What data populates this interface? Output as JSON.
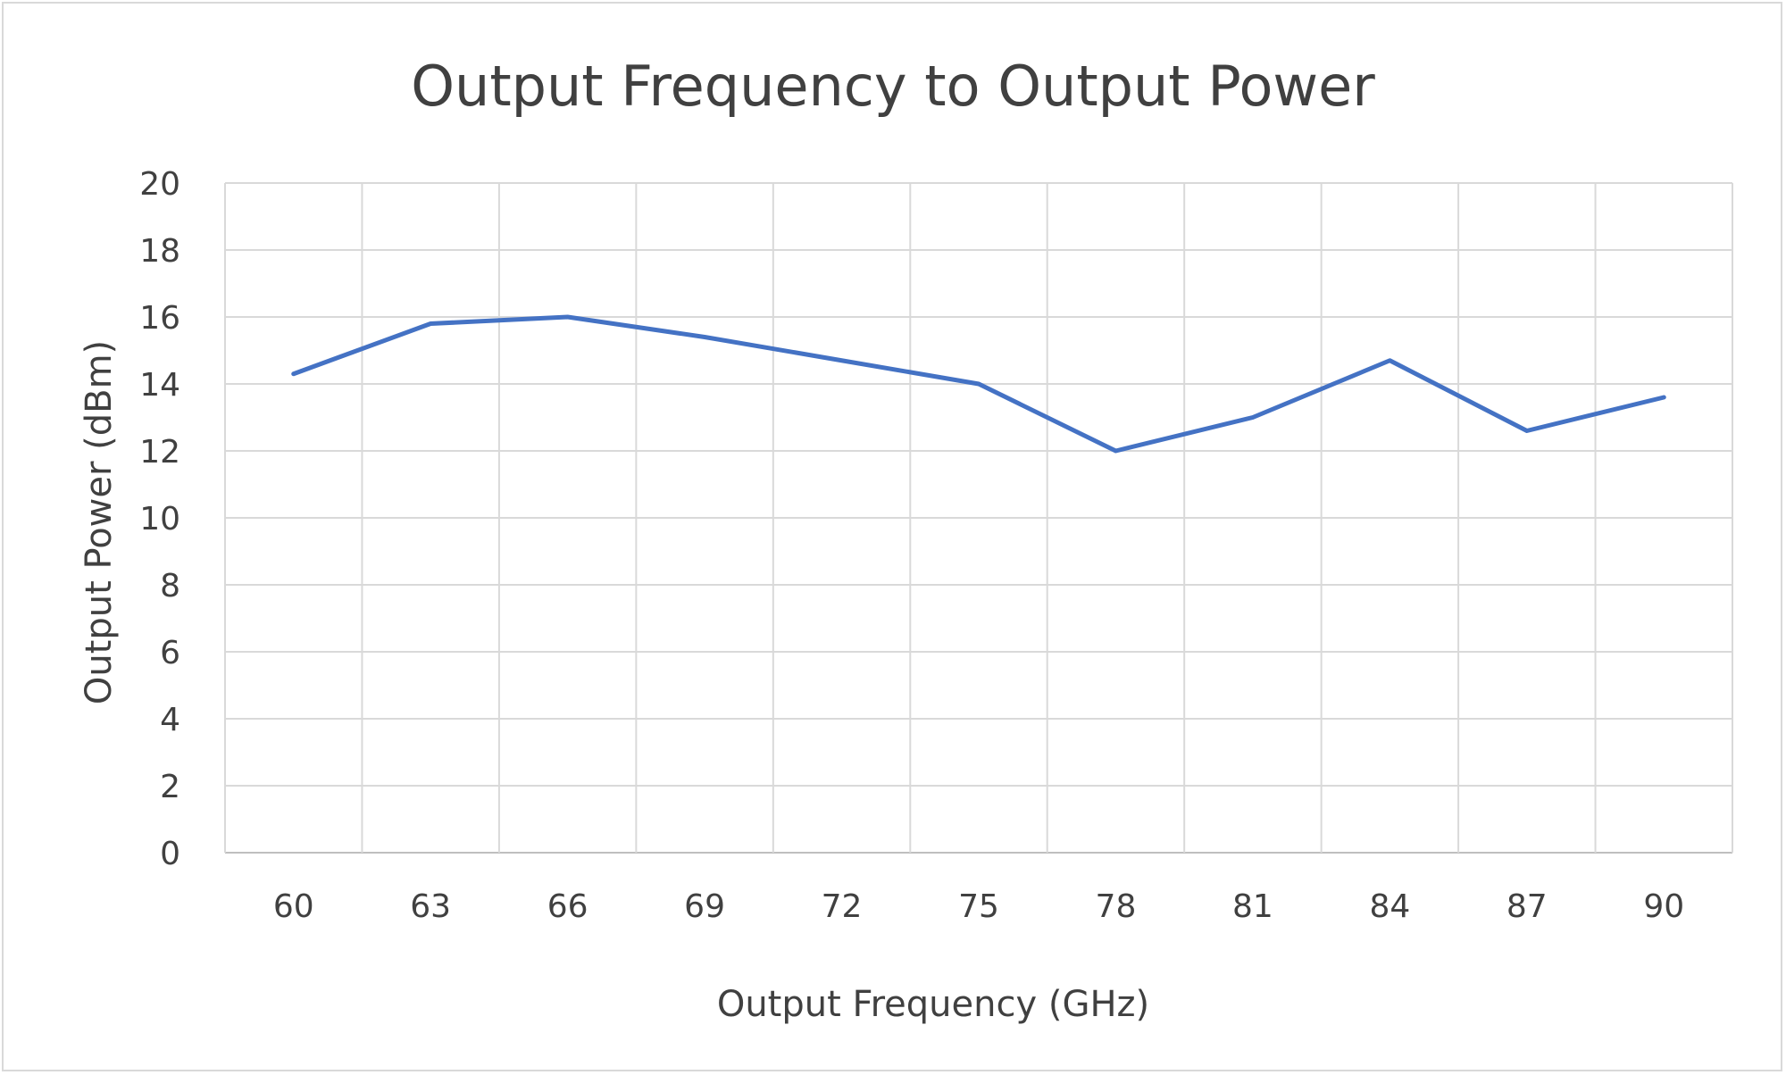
{
  "chart_data": {
    "type": "line",
    "title": "Output Frequency to Output Power",
    "xlabel": "Output Frequency (GHz)",
    "ylabel": "Output Power (dBm)",
    "categories": [
      "60",
      "63",
      "66",
      "69",
      "72",
      "75",
      "78",
      "81",
      "84",
      "87",
      "90"
    ],
    "x": [
      60,
      63,
      66,
      69,
      72,
      75,
      78,
      81,
      84,
      87,
      90
    ],
    "series": [
      {
        "values": [
          14.3,
          15.8,
          16.0,
          15.4,
          14.7,
          14.0,
          12.0,
          13.0,
          14.7,
          12.6,
          13.6
        ],
        "color": "#4472c4"
      }
    ],
    "ylim": [
      0,
      20
    ],
    "yticks": [
      0,
      2,
      4,
      6,
      8,
      10,
      12,
      14,
      16,
      18,
      20
    ],
    "grid": true,
    "legend": "none"
  }
}
